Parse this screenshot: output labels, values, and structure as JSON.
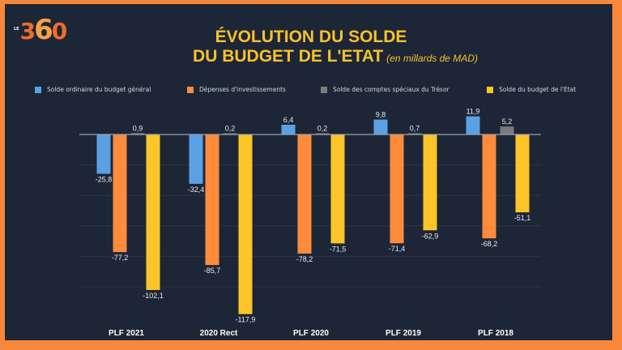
{
  "logo": {
    "prefix": "LE",
    "digits_a": "3",
    "digit_b": "6",
    "digits_c": "0"
  },
  "colors": {
    "frame": "#f7873a",
    "background": "#1d2637",
    "title": "#f8c12c",
    "series": [
      "#5aa1e3",
      "#ff8c3c",
      "#7b7b7b",
      "#fec529"
    ],
    "axis": "#9aa3b2"
  },
  "chart_data": {
    "type": "bar",
    "title": "ÉVOLUTION DU SOLDE DU BUDGET DE L'ETAT",
    "title_line1": "ÉVOLUTION DU SOLDE",
    "title_line2": "DU BUDGET DE L'ETAT",
    "subtitle": "(en millards de MAD)",
    "xlabel": "",
    "ylabel": "",
    "categories": [
      "PLF 2021",
      "2020 Rect",
      "PLF 2020",
      "PLF 2019",
      "PLF 2018"
    ],
    "series": [
      {
        "name": "Solde ordinaire du budget général",
        "values": [
          -25.8,
          -32.4,
          6.4,
          9.8,
          11.9
        ],
        "labels": [
          "-25,8",
          "-32,4",
          "6,4",
          "9,8",
          "11,9"
        ]
      },
      {
        "name": "Dépenses d'investissements",
        "values": [
          -77.2,
          -85.7,
          -78.2,
          -71.4,
          -68.2
        ],
        "labels": [
          "-77,2",
          "-85,7",
          "-78,2",
          "-71,4",
          "-68,2"
        ]
      },
      {
        "name": "Solde des comptes spéciaux du Trésor",
        "values": [
          0.9,
          0.2,
          0.2,
          0.7,
          5.2
        ],
        "labels": [
          "0,9",
          "0,2",
          "0,2",
          "0,7",
          "5,2"
        ]
      },
      {
        "name": "Solde du budget de l'Etat",
        "values": [
          -102.1,
          -117.9,
          -71.5,
          -62.9,
          -51.1
        ],
        "labels": [
          "-102,1",
          "-117,9",
          "-71,5",
          "-62,9",
          "-51,1"
        ]
      }
    ],
    "ylim": [
      -120,
      15
    ],
    "grid": true,
    "legend_position": "top"
  }
}
